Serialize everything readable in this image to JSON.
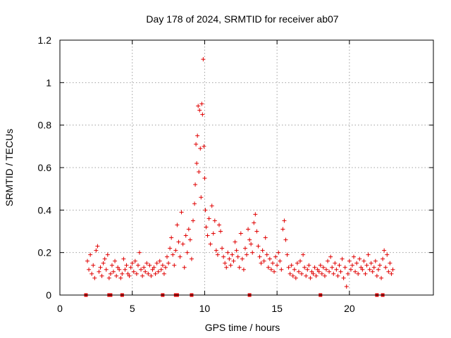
{
  "chart_data": {
    "type": "scatter",
    "title": "Day 178 of 2024, SRMTID for receiver ab07",
    "xlabel": "GPS time / hours",
    "ylabel": "SRMTID / TECUs",
    "xlim": [
      0,
      25.8
    ],
    "ylim": [
      0,
      1.2
    ],
    "grid": true,
    "xticks": [
      0,
      5,
      10,
      15,
      20
    ],
    "yticks": [
      0,
      0.2,
      0.4,
      0.6,
      0.8,
      1,
      1.2
    ],
    "ytick_labels": [
      "0",
      "0.2",
      "0.4",
      "0.6",
      "0.8",
      "1",
      "1.2"
    ],
    "marker": "+",
    "color": "#e00000",
    "series": [
      {
        "name": "SRMTID",
        "points": [
          [
            1.9,
            0.16
          ],
          [
            2.0,
            0.12
          ],
          [
            2.1,
            0.19
          ],
          [
            2.2,
            0.1
          ],
          [
            2.3,
            0.14
          ],
          [
            2.4,
            0.08
          ],
          [
            2.5,
            0.21
          ],
          [
            2.6,
            0.23
          ],
          [
            2.7,
            0.11
          ],
          [
            2.8,
            0.13
          ],
          [
            2.9,
            0.09
          ],
          [
            3.0,
            0.15
          ],
          [
            3.1,
            0.17
          ],
          [
            3.2,
            0.12
          ],
          [
            3.3,
            0.19
          ],
          [
            3.4,
            0.08
          ],
          [
            3.5,
            0.1
          ],
          [
            3.6,
            0.14
          ],
          [
            3.7,
            0.11
          ],
          [
            3.8,
            0.16
          ],
          [
            3.9,
            0.09
          ],
          [
            4.0,
            0.13
          ],
          [
            4.1,
            0.12
          ],
          [
            4.2,
            0.08
          ],
          [
            4.3,
            0.1
          ],
          [
            4.4,
            0.17
          ],
          [
            4.5,
            0.12
          ],
          [
            4.6,
            0.14
          ],
          [
            4.7,
            0.1
          ],
          [
            4.8,
            0.09
          ],
          [
            4.9,
            0.13
          ],
          [
            5.0,
            0.15
          ],
          [
            5.1,
            0.11
          ],
          [
            5.2,
            0.16
          ],
          [
            5.3,
            0.1
          ],
          [
            5.4,
            0.14
          ],
          [
            5.5,
            0.2
          ],
          [
            5.6,
            0.12
          ],
          [
            5.7,
            0.09
          ],
          [
            5.8,
            0.13
          ],
          [
            5.9,
            0.11
          ],
          [
            6.0,
            0.15
          ],
          [
            6.1,
            0.1
          ],
          [
            6.2,
            0.14
          ],
          [
            6.3,
            0.09
          ],
          [
            6.4,
            0.12
          ],
          [
            6.5,
            0.13
          ],
          [
            6.6,
            0.1
          ],
          [
            6.7,
            0.15
          ],
          [
            6.8,
            0.11
          ],
          [
            6.9,
            0.16
          ],
          [
            7.0,
            0.12
          ],
          [
            7.1,
            0.14
          ],
          [
            7.2,
            0.1
          ],
          [
            7.3,
            0.13
          ],
          [
            7.4,
            0.18
          ],
          [
            7.5,
            0.15
          ],
          [
            7.6,
            0.22
          ],
          [
            7.7,
            0.27
          ],
          [
            7.8,
            0.19
          ],
          [
            7.9,
            0.14
          ],
          [
            8.0,
            0.21
          ],
          [
            8.1,
            0.33
          ],
          [
            8.2,
            0.25
          ],
          [
            8.3,
            0.18
          ],
          [
            8.4,
            0.39
          ],
          [
            8.5,
            0.24
          ],
          [
            8.6,
            0.13
          ],
          [
            8.7,
            0.28
          ],
          [
            8.8,
            0.2
          ],
          [
            8.9,
            0.31
          ],
          [
            9.0,
            0.26
          ],
          [
            9.1,
            0.17
          ],
          [
            9.2,
            0.35
          ],
          [
            9.3,
            0.43
          ],
          [
            9.35,
            0.52
          ],
          [
            9.4,
            0.71
          ],
          [
            9.45,
            0.62
          ],
          [
            9.5,
            0.75
          ],
          [
            9.55,
            0.89
          ],
          [
            9.6,
            0.58
          ],
          [
            9.65,
            0.87
          ],
          [
            9.7,
            0.69
          ],
          [
            9.75,
            0.46
          ],
          [
            9.8,
            0.9
          ],
          [
            9.85,
            0.85
          ],
          [
            9.9,
            1.11
          ],
          [
            9.95,
            0.7
          ],
          [
            10.0,
            0.55
          ],
          [
            10.05,
            0.4
          ],
          [
            10.1,
            0.32
          ],
          [
            10.2,
            0.28
          ],
          [
            10.3,
            0.36
          ],
          [
            10.4,
            0.24
          ],
          [
            10.5,
            0.42
          ],
          [
            10.6,
            0.29
          ],
          [
            10.7,
            0.35
          ],
          [
            10.8,
            0.21
          ],
          [
            10.9,
            0.19
          ],
          [
            11.0,
            0.33
          ],
          [
            11.1,
            0.3
          ],
          [
            11.2,
            0.22
          ],
          [
            11.3,
            0.18
          ],
          [
            11.4,
            0.15
          ],
          [
            11.5,
            0.13
          ],
          [
            11.6,
            0.2
          ],
          [
            11.7,
            0.17
          ],
          [
            11.8,
            0.14
          ],
          [
            11.9,
            0.19
          ],
          [
            12.0,
            0.16
          ],
          [
            12.1,
            0.25
          ],
          [
            12.2,
            0.21
          ],
          [
            12.3,
            0.18
          ],
          [
            12.4,
            0.13
          ],
          [
            12.5,
            0.29
          ],
          [
            12.6,
            0.17
          ],
          [
            12.7,
            0.12
          ],
          [
            12.8,
            0.22
          ],
          [
            12.9,
            0.19
          ],
          [
            13.0,
            0.31
          ],
          [
            13.1,
            0.26
          ],
          [
            13.2,
            0.24
          ],
          [
            13.3,
            0.2
          ],
          [
            13.4,
            0.34
          ],
          [
            13.5,
            0.38
          ],
          [
            13.6,
            0.3
          ],
          [
            13.7,
            0.23
          ],
          [
            13.8,
            0.18
          ],
          [
            13.9,
            0.15
          ],
          [
            14.0,
            0.21
          ],
          [
            14.1,
            0.16
          ],
          [
            14.2,
            0.27
          ],
          [
            14.3,
            0.19
          ],
          [
            14.4,
            0.13
          ],
          [
            14.5,
            0.17
          ],
          [
            14.6,
            0.12
          ],
          [
            14.7,
            0.15
          ],
          [
            14.8,
            0.11
          ],
          [
            14.9,
            0.18
          ],
          [
            15.0,
            0.14
          ],
          [
            15.1,
            0.2
          ],
          [
            15.2,
            0.16
          ],
          [
            15.3,
            0.12
          ],
          [
            15.4,
            0.31
          ],
          [
            15.5,
            0.35
          ],
          [
            15.6,
            0.26
          ],
          [
            15.7,
            0.19
          ],
          [
            15.8,
            0.13
          ],
          [
            15.9,
            0.1
          ],
          [
            16.0,
            0.14
          ],
          [
            16.1,
            0.09
          ],
          [
            16.2,
            0.12
          ],
          [
            16.3,
            0.08
          ],
          [
            16.4,
            0.15
          ],
          [
            16.5,
            0.11
          ],
          [
            16.6,
            0.16
          ],
          [
            16.7,
            0.1
          ],
          [
            16.8,
            0.19
          ],
          [
            16.9,
            0.13
          ],
          [
            17.0,
            0.09
          ],
          [
            17.1,
            0.12
          ],
          [
            17.2,
            0.14
          ],
          [
            17.3,
            0.08
          ],
          [
            17.4,
            0.11
          ],
          [
            17.5,
            0.1
          ],
          [
            17.6,
            0.13
          ],
          [
            17.7,
            0.09
          ],
          [
            17.8,
            0.12
          ],
          [
            17.9,
            0.11
          ],
          [
            18.0,
            0.14
          ],
          [
            18.1,
            0.1
          ],
          [
            18.2,
            0.13
          ],
          [
            18.3,
            0.09
          ],
          [
            18.4,
            0.12
          ],
          [
            18.5,
            0.16
          ],
          [
            18.6,
            0.11
          ],
          [
            18.7,
            0.18
          ],
          [
            18.8,
            0.13
          ],
          [
            18.9,
            0.1
          ],
          [
            19.0,
            0.15
          ],
          [
            19.1,
            0.12
          ],
          [
            19.2,
            0.09
          ],
          [
            19.3,
            0.14
          ],
          [
            19.4,
            0.11
          ],
          [
            19.5,
            0.17
          ],
          [
            19.6,
            0.08
          ],
          [
            19.7,
            0.13
          ],
          [
            19.8,
            0.04
          ],
          [
            19.9,
            0.1
          ],
          [
            20.0,
            0.16
          ],
          [
            20.1,
            0.12
          ],
          [
            20.2,
            0.14
          ],
          [
            20.3,
            0.18
          ],
          [
            20.4,
            0.11
          ],
          [
            20.5,
            0.15
          ],
          [
            20.6,
            0.1
          ],
          [
            20.7,
            0.17
          ],
          [
            20.8,
            0.13
          ],
          [
            20.9,
            0.12
          ],
          [
            21.0,
            0.16
          ],
          [
            21.1,
            0.1
          ],
          [
            21.2,
            0.14
          ],
          [
            21.3,
            0.19
          ],
          [
            21.4,
            0.12
          ],
          [
            21.5,
            0.15
          ],
          [
            21.6,
            0.11
          ],
          [
            21.7,
            0.13
          ],
          [
            21.8,
            0.16
          ],
          [
            21.9,
            0.09
          ],
          [
            22.0,
            0.12
          ],
          [
            22.1,
            0.14
          ],
          [
            22.2,
            0.08
          ],
          [
            22.3,
            0.17
          ],
          [
            22.4,
            0.21
          ],
          [
            22.5,
            0.13
          ],
          [
            22.6,
            0.19
          ],
          [
            22.7,
            0.11
          ],
          [
            22.8,
            0.15
          ],
          [
            22.9,
            0.1
          ],
          [
            23.0,
            0.12
          ]
        ]
      }
    ],
    "baseline_markers_x": [
      1.8,
      3.4,
      3.5,
      4.3,
      7.1,
      8.0,
      8.1,
      9.1,
      13.1,
      18.0,
      21.9,
      22.3
    ]
  }
}
